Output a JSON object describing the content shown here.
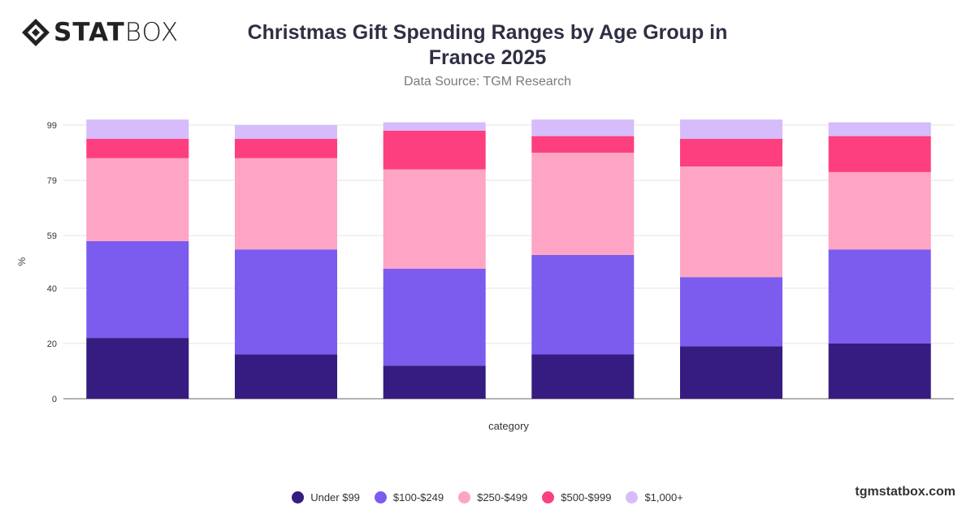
{
  "brand": {
    "name_bold": "STAT",
    "name_light": "BOX",
    "site": "tgmstatbox.com"
  },
  "header": {
    "title": "Christmas Gift Spending Ranges by Age Group in France 2025",
    "subtitle": "Data Source: TGM Research"
  },
  "chart_data": {
    "type": "bar",
    "stacked": true,
    "categories": [
      "",
      "",
      "",
      "",
      "",
      ""
    ],
    "xlabel": "category",
    "ylabel": "%",
    "yticks": [
      0,
      20,
      40,
      59,
      79,
      99
    ],
    "ylim": [
      0,
      99
    ],
    "grid": true,
    "legend_position": "bottom",
    "series": [
      {
        "name": "Under $99",
        "color": "#361c80",
        "values": [
          22,
          16,
          12,
          16,
          19,
          20
        ]
      },
      {
        "name": "$100-$249",
        "color": "#7b5cef",
        "values": [
          35,
          38,
          35,
          36,
          25,
          34
        ]
      },
      {
        "name": "$250-$499",
        "color": "#fea4c5",
        "values": [
          30,
          33,
          36,
          37,
          40,
          28
        ]
      },
      {
        "name": "$500-$999",
        "color": "#fd3f7f",
        "values": [
          7,
          7,
          14,
          6,
          10,
          13
        ]
      },
      {
        "name": "$1,000+",
        "color": "#d6bcfa",
        "values": [
          7,
          5,
          3,
          6,
          7,
          5
        ]
      }
    ]
  }
}
